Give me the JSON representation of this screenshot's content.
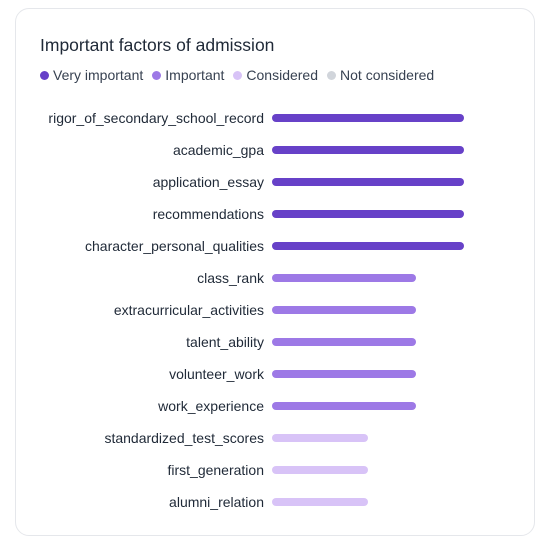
{
  "chart_data": {
    "type": "bar",
    "orientation": "horizontal",
    "title": "Important factors of admission",
    "legend": {
      "placement": "top-left",
      "entries": [
        {
          "label": "Very important",
          "color": "#6741c8",
          "value": 4
        },
        {
          "label": "Important",
          "color": "#9d79e6",
          "value": 3
        },
        {
          "label": "Considered",
          "color": "#d8c3f7",
          "value": 2
        },
        {
          "label": "Not considered",
          "color": "#d1d5db",
          "value": 1
        }
      ]
    },
    "categories": [
      "rigor_of_secondary_school_record",
      "academic_gpa",
      "application_essay",
      "recommendations",
      "character_personal_qualities",
      "class_rank",
      "extracurricular_activities",
      "talent_ability",
      "volunteer_work",
      "work_experience",
      "standardized_test_scores",
      "first_generation",
      "alumni_relation"
    ],
    "values": [
      4,
      4,
      4,
      4,
      4,
      3,
      3,
      3,
      3,
      3,
      2,
      2,
      2
    ],
    "levels": [
      "Very important",
      "Very important",
      "Very important",
      "Very important",
      "Very important",
      "Important",
      "Important",
      "Important",
      "Important",
      "Important",
      "Considered",
      "Considered",
      "Considered"
    ],
    "xlim": [
      0,
      4
    ],
    "grid": false
  }
}
